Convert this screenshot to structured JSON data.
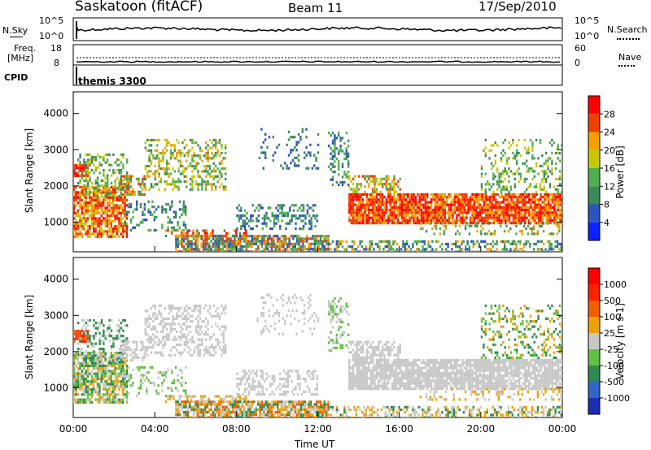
{
  "header": {
    "station": "Saskatoon (fitACF)",
    "beam": "Beam 11",
    "date": "17/Sep/2010"
  },
  "top_panels": {
    "nsky_label": "N.Sky",
    "nsearch_label": "N.Search",
    "nsky_ticks": [
      "10^5",
      "10^0"
    ],
    "nsearch_ticks": [
      "10^5",
      "10^0"
    ],
    "freq_label_line1": "Freq.",
    "freq_label_line2": "[MHz]",
    "freq_ticks": [
      "18",
      "8"
    ],
    "nave_label": "Nave",
    "nave_ticks": [
      "60",
      "0"
    ],
    "cpid_label": "CPID",
    "cpid_value": "themis 3300"
  },
  "chart_data": [
    {
      "type": "heatmap",
      "name": "power",
      "ylabel": "Slant Range [km]",
      "y_ticks": [
        1000,
        2000,
        3000,
        4000
      ],
      "ylim": [
        180,
        4600
      ],
      "colorbar_label": "Power [dB]",
      "colorbar_ticks": [
        "4",
        "8",
        "12",
        "16",
        "20",
        "24",
        "28"
      ],
      "colors": [
        "#0a22ff",
        "#2c54bf",
        "#3a8a5a",
        "#50b050",
        "#c8c800",
        "#f6a000",
        "#f04000",
        "#ff0000"
      ]
    },
    {
      "type": "heatmap",
      "name": "velocity",
      "ylabel": "Slant Range [km]",
      "y_ticks": [
        1000,
        2000,
        3000,
        4000
      ],
      "ylim": [
        180,
        4600
      ],
      "colorbar_label": "Velocity [m s-1]",
      "colorbar_ticks": [
        "1000",
        "500",
        "100",
        "25",
        "-25",
        "-100",
        "-500",
        "-1000"
      ],
      "colors": [
        "#1e2cb4",
        "#3266c4",
        "#2e8a50",
        "#60c040",
        "#c8c8c8",
        "#f0a000",
        "#f06000",
        "#ff2000",
        "#ff0000"
      ]
    }
  ],
  "x_axis": {
    "label": "Time UT",
    "ticks": [
      "00:00",
      "04:00",
      "08:00",
      "12:00",
      "16:00",
      "20:00",
      "00:00"
    ],
    "xlim_hours": [
      0,
      24
    ]
  }
}
